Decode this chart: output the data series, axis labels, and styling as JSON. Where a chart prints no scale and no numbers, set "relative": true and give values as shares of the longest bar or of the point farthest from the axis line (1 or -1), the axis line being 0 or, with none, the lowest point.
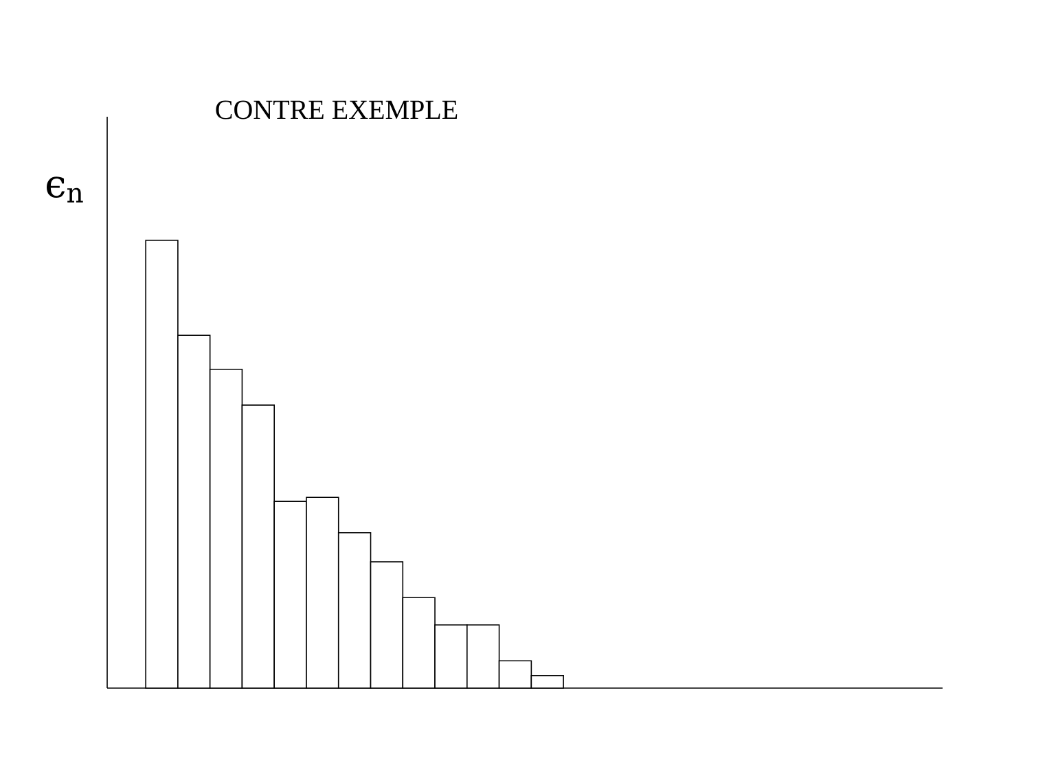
{
  "chart_data": {
    "type": "bar",
    "title": "CONTRE EXEMPLE",
    "ylabel": "ϵ$_{n}$",
    "relative": true,
    "categories": [
      null,
      null,
      null,
      null,
      null,
      null,
      null,
      null,
      null,
      null,
      null,
      null,
      null
    ],
    "values": [
      1,
      0.788,
      0.712,
      0.632,
      0.417,
      0.426,
      0.347,
      0.282,
      0.202,
      0.141,
      0.141,
      0.061,
      0.028
    ],
    "color": "#ffffff"
  }
}
